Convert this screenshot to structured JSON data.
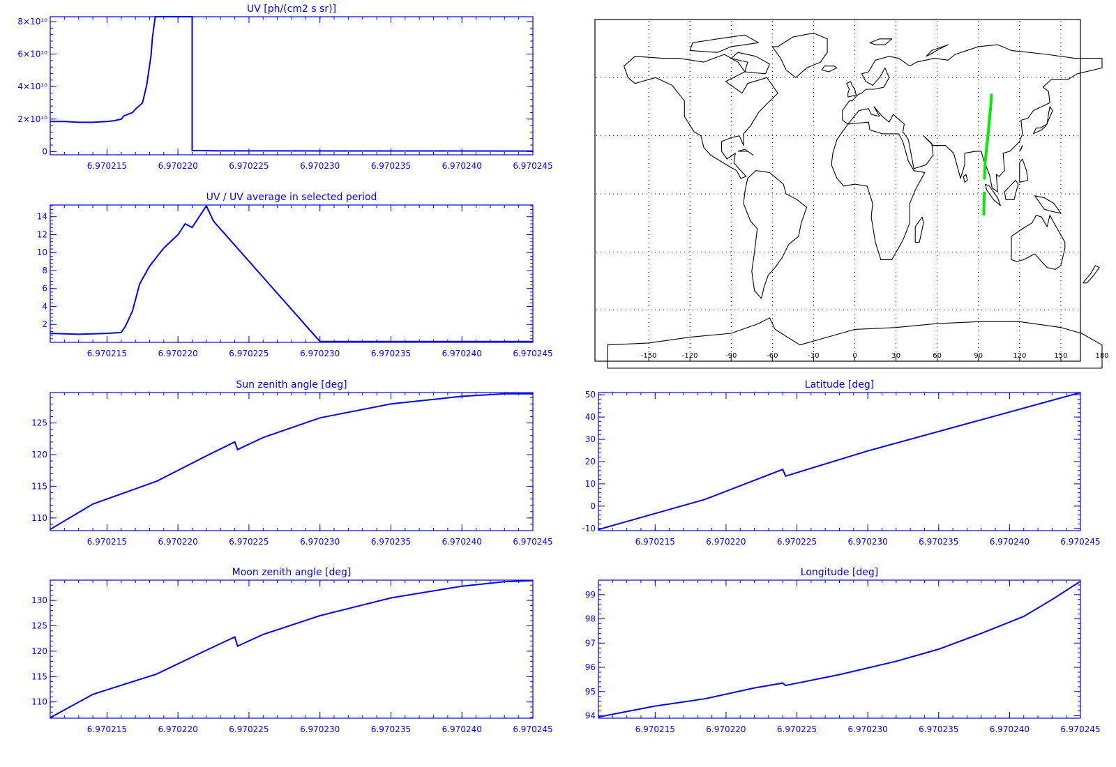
{
  "colors": {
    "axis": "#0000ff",
    "line": "#0000ff",
    "track": "#00ee00",
    "map": "#000000",
    "background": "#ffffff"
  },
  "chart_data": [
    {
      "id": "uv",
      "type": "line",
      "title": "UV [ph/(cm2 s sr)]",
      "xlabel": "",
      "ylabel": "",
      "xlim": [
        6.970211,
        6.970245
      ],
      "ylim": [
        -2000000000,
        83000000000
      ],
      "xticks": [
        6.970215,
        6.97022,
        6.970225,
        6.97023,
        6.970235,
        6.97024,
        6.970245
      ],
      "xtick_labels": [
        "6.970215",
        "6.970220",
        "6.970225",
        "6.970230",
        "6.970235",
        "6.970240",
        "6.970245"
      ],
      "yticks": [
        0,
        20000000000,
        40000000000,
        60000000000,
        80000000000
      ],
      "ytick_labels": [
        "0",
        "2×10¹⁰",
        "4×10¹⁰",
        "6×10¹⁰",
        "8×10¹⁰"
      ],
      "series": [
        {
          "x": [
            6.970211,
            6.970212,
            6.970213,
            6.970214,
            6.970215,
            6.9702155,
            6.970216,
            6.9702162,
            6.9702168,
            6.970217,
            6.9702175,
            6.9702178,
            6.9702181,
            6.9702182,
            6.9702184,
            6.970221,
            6.970221,
            6.970223,
            6.970245
          ],
          "y": [
            18500000000,
            18500000000,
            18000000000,
            18000000000,
            18500000000,
            19000000000,
            20000000000,
            22000000000,
            24000000000,
            26000000000,
            30000000000,
            41000000000,
            59000000000,
            70000000000,
            83000000000,
            83000000000,
            600000000,
            400000000,
            300000000
          ]
        }
      ]
    },
    {
      "id": "ratio",
      "type": "line",
      "title": "UV / UV average in selected period",
      "xlabel": "",
      "ylabel": "",
      "xlim": [
        6.970211,
        6.970245
      ],
      "ylim": [
        0,
        15.3
      ],
      "xticks": [
        6.970215,
        6.97022,
        6.970225,
        6.97023,
        6.970235,
        6.97024,
        6.970245
      ],
      "xtick_labels": [
        "6.970215",
        "6.970220",
        "6.970225",
        "6.970230",
        "6.970235",
        "6.970240",
        "6.970245"
      ],
      "yticks": [
        2,
        4,
        6,
        8,
        10,
        12,
        14
      ],
      "ytick_labels": [
        "2",
        "4",
        "6",
        "8",
        "10",
        "12",
        "14"
      ],
      "series": [
        {
          "x": [
            6.970211,
            6.970213,
            6.970215,
            6.970216,
            6.9702163,
            6.9702168,
            6.9702173,
            6.970218,
            6.970219,
            6.97022,
            6.9702205,
            6.970221,
            6.9702215,
            6.970222,
            6.9702225,
            6.97023,
            6.970245
          ],
          "y": [
            1.0,
            0.9,
            1.0,
            1.1,
            1.8,
            3.5,
            6.5,
            8.5,
            10.5,
            12.0,
            13.2,
            12.8,
            14.0,
            15.2,
            13.5,
            0.1,
            0.1
          ]
        }
      ]
    },
    {
      "id": "sza",
      "type": "line",
      "title": "Sun zenith angle [deg]",
      "xlabel": "",
      "ylabel": "",
      "xlim": [
        6.970211,
        6.970245
      ],
      "ylim": [
        108,
        129.8
      ],
      "xticks": [
        6.970215,
        6.97022,
        6.970225,
        6.97023,
        6.970235,
        6.97024,
        6.970245
      ],
      "xtick_labels": [
        "6.970215",
        "6.970220",
        "6.970225",
        "6.970230",
        "6.970235",
        "6.970240",
        "6.970245"
      ],
      "yticks": [
        110,
        115,
        120,
        125
      ],
      "ytick_labels": [
        "110",
        "115",
        "120",
        "125"
      ],
      "series": [
        {
          "x": [
            6.970211,
            6.970214,
            6.9702185,
            6.970222,
            6.970224,
            6.9702242,
            6.970226,
            6.97023,
            6.970235,
            6.97024,
            6.970243,
            6.970245
          ],
          "y": [
            108.2,
            112.2,
            115.8,
            119.8,
            122.0,
            120.8,
            122.7,
            125.8,
            128.0,
            129.2,
            129.6,
            129.6
          ]
        }
      ]
    },
    {
      "id": "lat",
      "type": "line",
      "title": "Latitude [deg]",
      "xlabel": "",
      "ylabel": "",
      "xlim": [
        6.970211,
        6.970245
      ],
      "ylim": [
        -11,
        51
      ],
      "xticks": [
        6.970215,
        6.97022,
        6.970225,
        6.97023,
        6.970235,
        6.97024,
        6.970245
      ],
      "xtick_labels": [
        "6.970215",
        "6.970220",
        "6.970225",
        "6.970230",
        "6.970235",
        "6.970240",
        "6.970245"
      ],
      "yticks": [
        -10,
        0,
        10,
        20,
        30,
        40,
        50
      ],
      "ytick_labels": [
        "-10",
        "0",
        "10",
        "20",
        "30",
        "40",
        "50"
      ],
      "series": [
        {
          "x": [
            6.970211,
            6.9702185,
            6.970224,
            6.9702242,
            6.97023,
            6.970245
          ],
          "y": [
            -10.5,
            3.0,
            16.5,
            13.5,
            24.8,
            51.0
          ]
        }
      ]
    },
    {
      "id": "mza",
      "type": "line",
      "title": "Moon zenith angle [deg]",
      "xlabel": "",
      "ylabel": "",
      "xlim": [
        6.970211,
        6.970245
      ],
      "ylim": [
        106.8,
        134
      ],
      "xticks": [
        6.970215,
        6.97022,
        6.970225,
        6.97023,
        6.970235,
        6.97024,
        6.970245
      ],
      "xtick_labels": [
        "6.970215",
        "6.970220",
        "6.970225",
        "6.970230",
        "6.970235",
        "6.970240",
        "6.970245"
      ],
      "yticks": [
        110,
        115,
        120,
        125,
        130
      ],
      "ytick_labels": [
        "110",
        "115",
        "120",
        "125",
        "130"
      ],
      "series": [
        {
          "x": [
            6.970211,
            6.970214,
            6.9702185,
            6.970222,
            6.970224,
            6.9702242,
            6.970226,
            6.97023,
            6.970235,
            6.97024,
            6.970243,
            6.970245
          ],
          "y": [
            106.9,
            111.5,
            115.5,
            120.2,
            122.8,
            121.0,
            123.3,
            127.0,
            130.5,
            132.8,
            133.7,
            133.9
          ]
        }
      ]
    },
    {
      "id": "lon",
      "type": "line",
      "title": "Longitude [deg]",
      "xlabel": "",
      "ylabel": "",
      "xlim": [
        6.970211,
        6.970245
      ],
      "ylim": [
        93.9,
        99.6
      ],
      "xticks": [
        6.970215,
        6.97022,
        6.970225,
        6.97023,
        6.970235,
        6.97024,
        6.970245
      ],
      "xtick_labels": [
        "6.970215",
        "6.970220",
        "6.970225",
        "6.970230",
        "6.970235",
        "6.970240",
        "6.970245"
      ],
      "yticks": [
        94,
        95,
        96,
        97,
        98,
        99
      ],
      "ytick_labels": [
        "94",
        "95",
        "96",
        "97",
        "98",
        "99"
      ],
      "series": [
        {
          "x": [
            6.970211,
            6.970215,
            6.9702185,
            6.970222,
            6.970224,
            6.9702242,
            6.970228,
            6.970232,
            6.970235,
            6.970238,
            6.970241,
            6.970243,
            6.970245
          ],
          "y": [
            93.95,
            94.4,
            94.7,
            95.15,
            95.35,
            95.25,
            95.7,
            96.25,
            96.75,
            97.4,
            98.1,
            98.8,
            99.55
          ]
        }
      ]
    },
    {
      "id": "map",
      "type": "scatter",
      "title": "",
      "xlim": [
        -180,
        180
      ],
      "ylim": [
        -90,
        90
      ],
      "xticks": [
        -150,
        -120,
        -90,
        -60,
        -30,
        0,
        30,
        60,
        90,
        120,
        150,
        180
      ],
      "xtick_labels": [
        "-150",
        "-120",
        "-90",
        "-60",
        "-30",
        "0",
        "30",
        "60",
        "90",
        "120",
        "150",
        "180"
      ],
      "grid": true,
      "track_segments": [
        {
          "lon": [
            93.9,
            94.1,
            94.3
          ],
          "lat": [
            -10.5,
            -4.0,
            0.5
          ]
        },
        {
          "lon": [
            94.4,
            95.0,
            96.0,
            97.0,
            98.0,
            98.8,
            99.5
          ],
          "lat": [
            8.0,
            16.5,
            24.0,
            30.0,
            38.0,
            44.0,
            51.0
          ]
        }
      ]
    }
  ]
}
